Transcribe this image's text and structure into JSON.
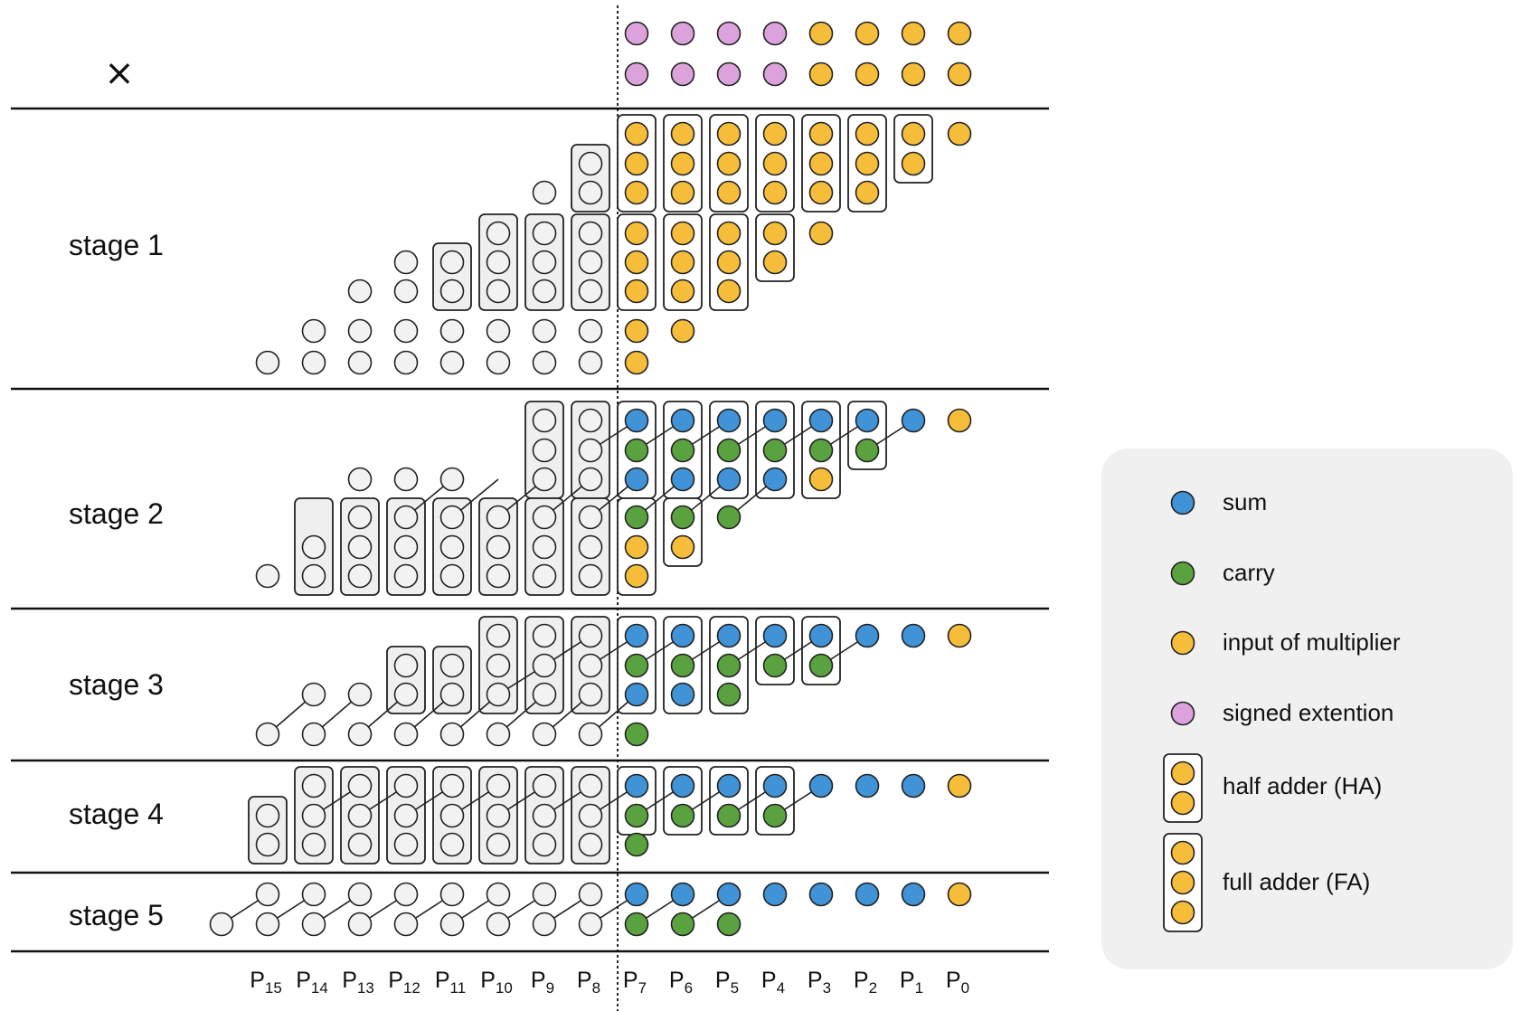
{
  "times_symbol": "×",
  "stages": [
    "stage 1",
    "stage 2",
    "stage 3",
    "stage 4",
    "stage 5"
  ],
  "columns": [
    "15",
    "14",
    "13",
    "12",
    "11",
    "10",
    "9",
    "8",
    "7",
    "6",
    "5",
    "4",
    "3",
    "2",
    "1",
    "0"
  ],
  "column_prefix": "P",
  "legend": {
    "sum": "sum",
    "carry": "carry",
    "input": "input of multiplier",
    "signed": "signed extention",
    "ha": "half adder (HA)",
    "fa": "full adder (FA)"
  },
  "colors": {
    "sum": "#3f93d6",
    "carry": "#5aa23f",
    "input": "#f6bd3b",
    "signed": "#dba2dc",
    "empty": "#f2f2f2",
    "box": "#efefef",
    "legend_bg": "#f0f0f0"
  }
}
